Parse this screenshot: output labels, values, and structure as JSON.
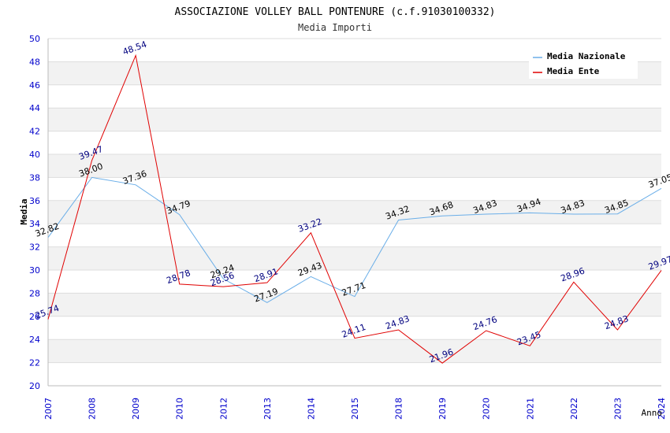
{
  "chart_data": {
    "type": "line",
    "title": "ASSOCIAZIONE VOLLEY BALL PONTENURE (c.f.91030100332)",
    "subtitle": "Media Importi",
    "xlabel": "Anno",
    "ylabel": "Media",
    "ylim": [
      20,
      50
    ],
    "ytick_step": 2,
    "grid": true,
    "legend_position": "top-right",
    "categories": [
      "2007",
      "2008",
      "2009",
      "2010",
      "2012",
      "2013",
      "2014",
      "2015",
      "2018",
      "2019",
      "2020",
      "2021",
      "2022",
      "2023",
      "2024"
    ],
    "series": [
      {
        "name": "Media Nazionale",
        "color": "#6aaee8",
        "label_color": "#000000",
        "values": [
          32.82,
          38.0,
          37.36,
          34.79,
          29.24,
          27.19,
          29.43,
          27.71,
          34.32,
          34.68,
          34.83,
          34.94,
          34.83,
          34.85,
          37.05
        ],
        "labels": [
          "32.82",
          "38.00",
          "37.36",
          "34.79",
          "29.24",
          "27.19",
          "29.43",
          "27.71",
          "34.32",
          "34.68",
          "34.83",
          "34.94",
          "34.83",
          "34.85",
          "37.05"
        ]
      },
      {
        "name": "Media Ente",
        "color": "#e00000",
        "label_color": "#00007f",
        "values": [
          25.74,
          39.47,
          48.54,
          28.78,
          28.56,
          28.91,
          33.22,
          24.11,
          24.83,
          21.96,
          24.76,
          23.45,
          28.96,
          24.83,
          29.97
        ],
        "labels": [
          "25.74",
          "39.47",
          "48.54",
          "28.78",
          "28.56",
          "28.91",
          "33.22",
          "24.11",
          "24.83",
          "21.96",
          "24.76",
          "23.45",
          "28.96",
          "24.83",
          "29.97"
        ]
      }
    ]
  }
}
